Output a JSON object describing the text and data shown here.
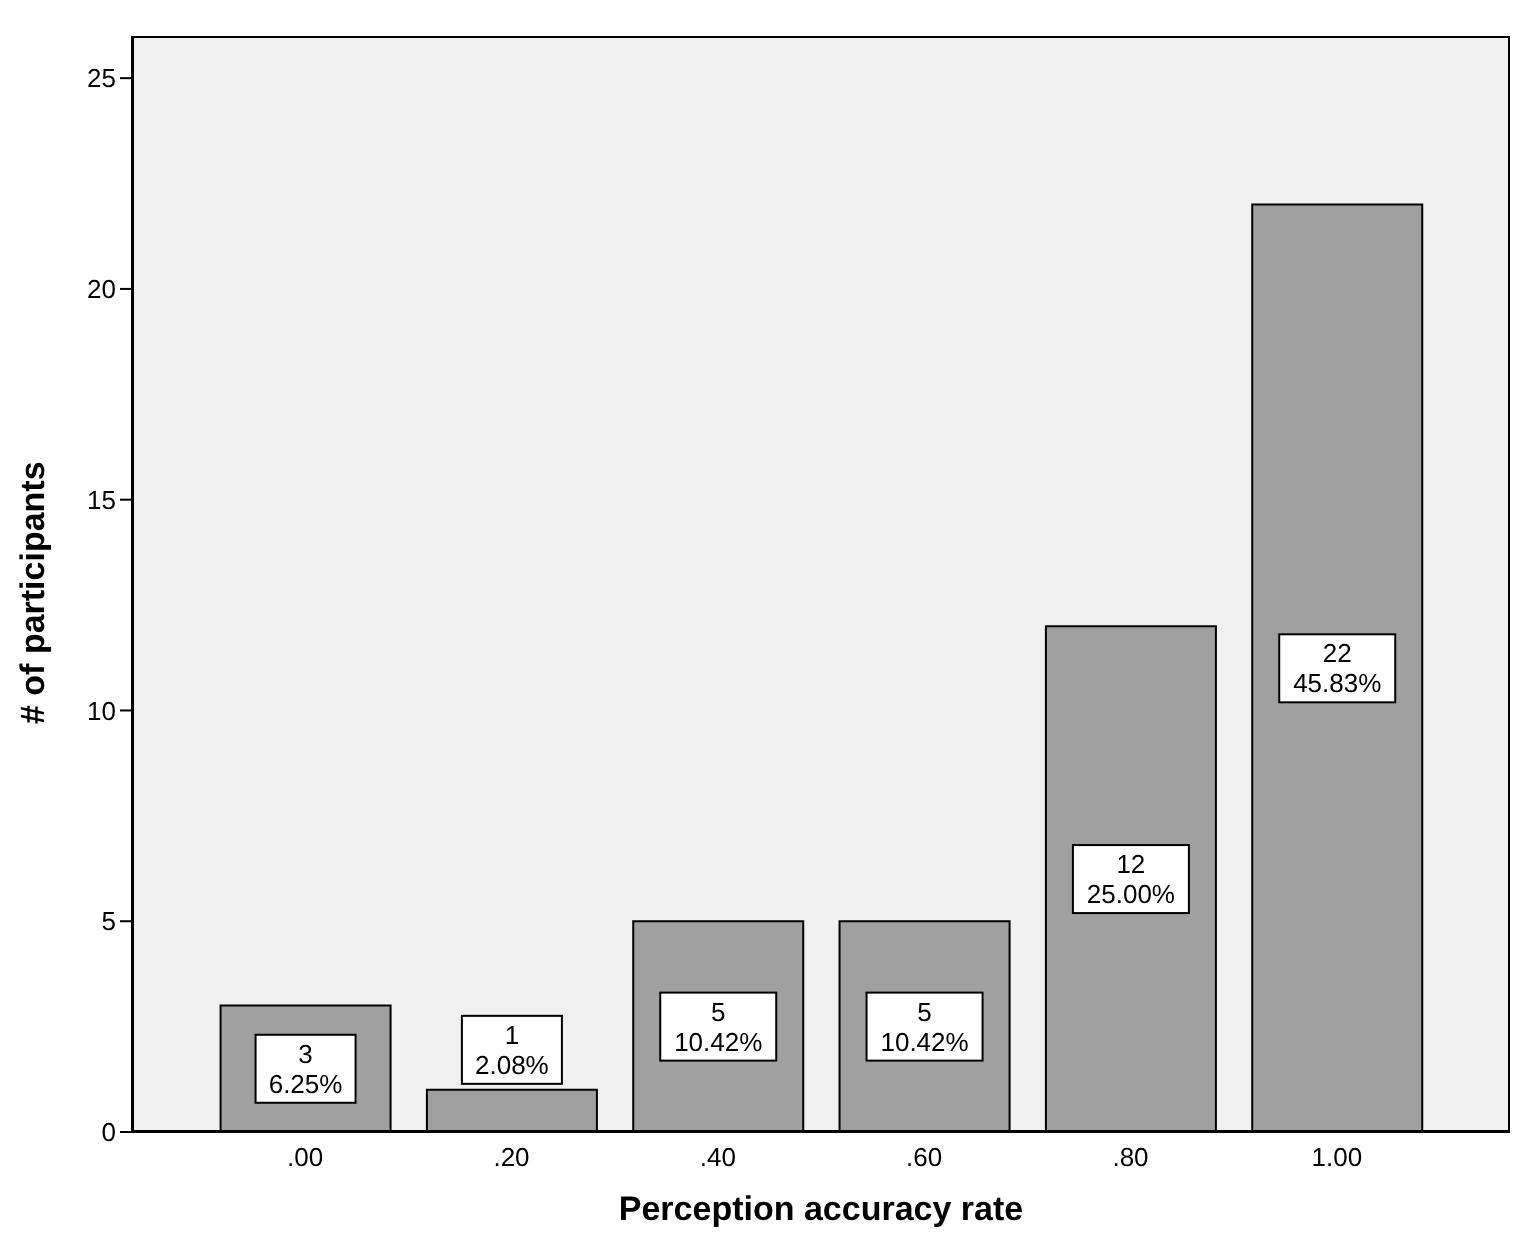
{
  "chart_data": {
    "type": "bar",
    "xlabel": "Perception accuracy rate",
    "ylabel": "# of participants",
    "categories": [
      ".00",
      ".20",
      ".40",
      ".60",
      ".80",
      "1.00"
    ],
    "values": [
      3,
      1,
      5,
      5,
      12,
      22
    ],
    "color": "#a0a0a0",
    "value_labels": [
      "3\n6.25%",
      "1\n2.08%",
      "5\n10.42%",
      "5\n10.42%",
      "12\n25.00%",
      "22\n45.83%"
    ],
    "ylim": [
      0,
      26
    ],
    "yticks": [
      0,
      5,
      10,
      15,
      20,
      25
    ]
  }
}
